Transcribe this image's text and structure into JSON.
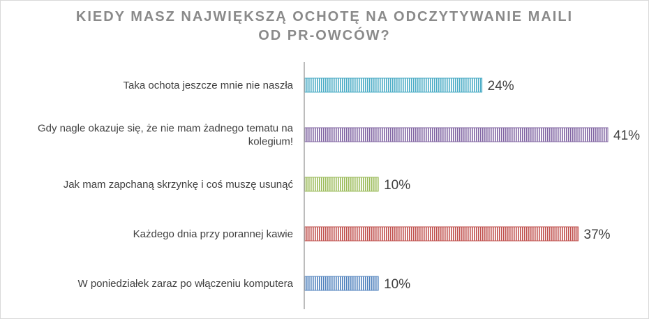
{
  "chart_data": {
    "type": "bar",
    "orientation": "horizontal",
    "title": "KIEDY MASZ NAJWIĘKSZĄ OCHOTĘ NA ODCZYTYWANIE MAILI OD PR-OWCÓW?",
    "title_lines": [
      "KIEDY MASZ NAJWIĘKSZĄ OCHOTĘ NA ODCZYTYWANIE MAILI",
      "OD PR-OWCÓW?"
    ],
    "categories": [
      "Taka ochota jeszcze mnie nie naszła",
      "Gdy nagle okazuje się, że nie mam żadnego tematu na kolegium!",
      "Jak mam zapchaną skrzynkę i coś muszę usunąć",
      "Każdego dnia przy porannej kawie",
      "W poniedziałek zaraz po włączeniu komputera"
    ],
    "category_lines": [
      [
        "Taka ochota jeszcze mnie nie naszła"
      ],
      [
        "Gdy nagle okazuje się, że nie mam żadnego tematu na",
        "kolegium!"
      ],
      [
        "Jak mam zapchaną skrzynkę i coś muszę usunąć"
      ],
      [
        "Każdego dnia przy porannej kawie"
      ],
      [
        "W poniedziałek zaraz po włączeniu komputera"
      ]
    ],
    "values": [
      24,
      41,
      10,
      37,
      10
    ],
    "value_labels": [
      "24%",
      "41%",
      "10%",
      "37%",
      "10%"
    ],
    "colors": [
      "#4bacc6",
      "#8064a2",
      "#9bbb59",
      "#c0504d",
      "#4f81bd"
    ],
    "xlim": [
      0,
      41
    ],
    "grid": false,
    "legend": "none"
  }
}
